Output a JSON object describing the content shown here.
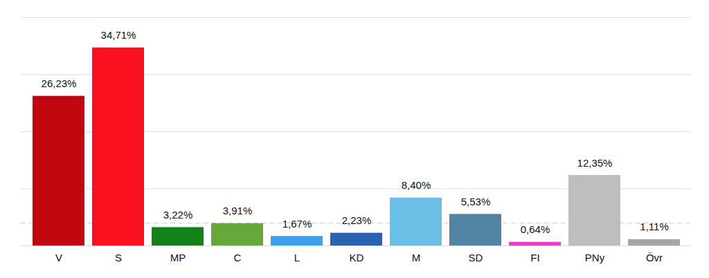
{
  "chart_data": {
    "type": "bar",
    "categories": [
      "V",
      "S",
      "MP",
      "C",
      "L",
      "KD",
      "M",
      "SD",
      "FI",
      "PNy",
      "Övr"
    ],
    "values": [
      26.23,
      34.71,
      3.22,
      3.91,
      1.67,
      2.23,
      8.4,
      5.53,
      0.64,
      12.35,
      1.11
    ],
    "value_labels": [
      "26,23%",
      "34,71%",
      "3,22%",
      "3,91%",
      "1,67%",
      "2,23%",
      "8,40%",
      "5,53%",
      "0,64%",
      "12,35%",
      "1,11%"
    ],
    "colors": [
      "#c1060f",
      "#fb1020",
      "#13821a",
      "#68a83a",
      "#3f9ef0",
      "#2a62b3",
      "#6bbfe6",
      "#5183a3",
      "#e540c3",
      "#bdbdbd",
      "#a6a6a6"
    ],
    "ylim": [
      0,
      40
    ],
    "yticks": [
      0,
      10,
      20,
      30,
      40
    ],
    "threshold": 4,
    "grid": true,
    "data_labels": true,
    "tick_labels": "x"
  }
}
